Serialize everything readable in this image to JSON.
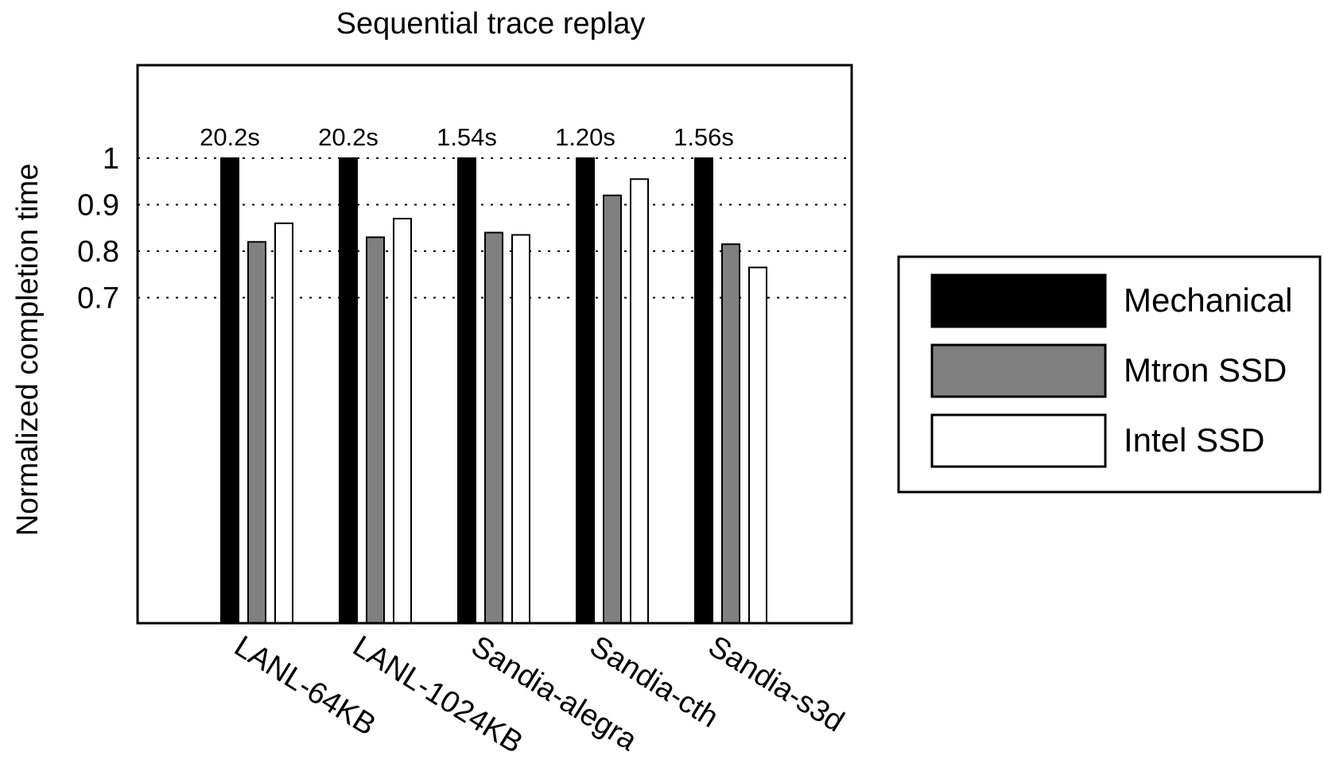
{
  "chart_data": {
    "type": "bar",
    "title": "Sequential trace replay",
    "ylabel": "Normalized completion time",
    "xlabel": "",
    "ylim": [
      0.0,
      1.2
    ],
    "yticks": [
      0.7,
      0.8,
      0.9,
      1
    ],
    "ytick_labels": [
      "0.7",
      "0.8",
      "0.9",
      "1"
    ],
    "grid": "dotted horizontal at y ticks",
    "legend_position": "right",
    "categories": [
      "LANL-64KB",
      "LANL-1024KB",
      "Sandia-alegra",
      "Sandia-cth",
      "Sandia-s3d"
    ],
    "annotations": [
      "20.2s",
      "20.2s",
      "1.54s",
      "1.20s",
      "1.56s"
    ],
    "series": [
      {
        "name": "Mechanical",
        "color": "#000000",
        "values": [
          1.0,
          1.0,
          1.0,
          1.0,
          1.0
        ]
      },
      {
        "name": "Mtron SSD",
        "color": "#808080",
        "values": [
          0.82,
          0.83,
          0.84,
          0.92,
          0.815
        ]
      },
      {
        "name": "Intel SSD",
        "color": "#ffffff",
        "values": [
          0.86,
          0.87,
          0.835,
          0.955,
          0.765
        ]
      }
    ]
  }
}
